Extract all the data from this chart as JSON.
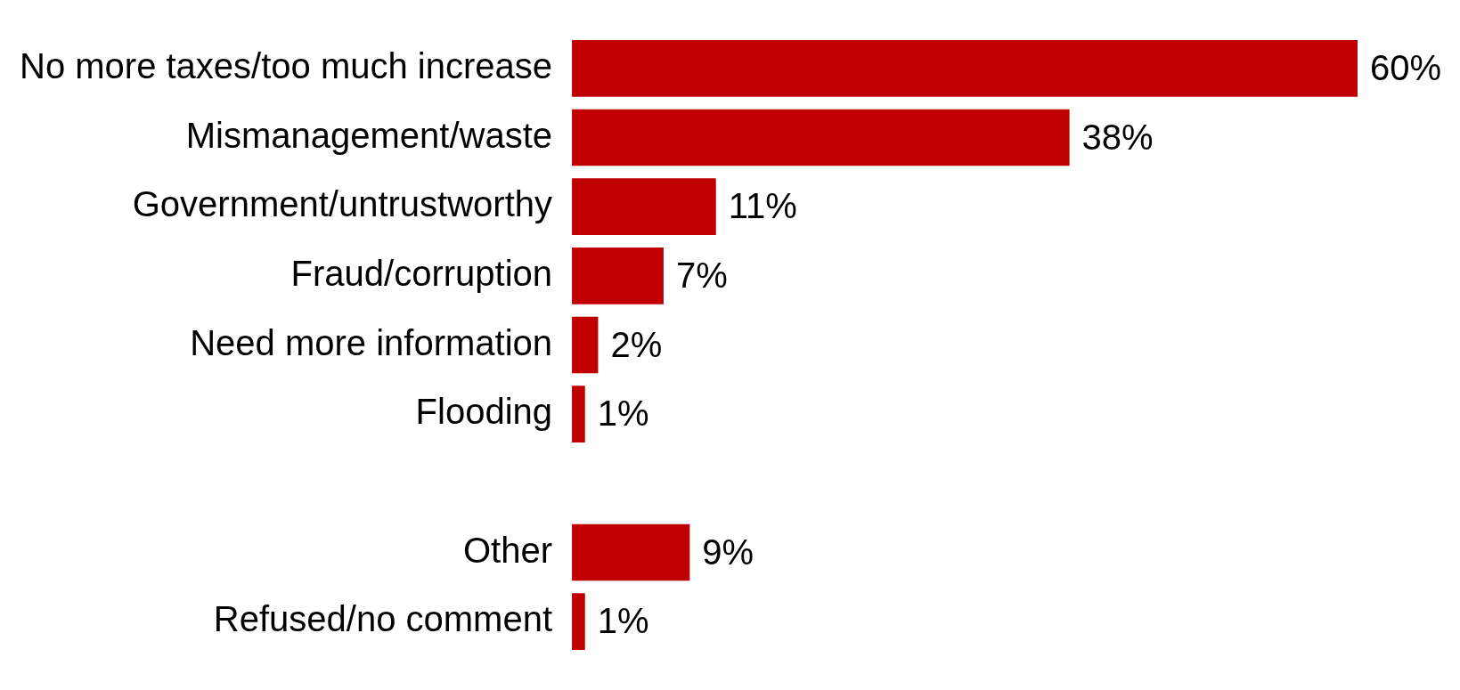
{
  "chart_data": {
    "type": "bar",
    "orientation": "horizontal",
    "categories": [
      "No more taxes/too much increase",
      "Mismanagement/waste",
      "Government/untrustworthy",
      "Fraud/corruption",
      "Need more information",
      "Flooding",
      null,
      "Other",
      "Refused/no comment"
    ],
    "values": [
      60,
      38,
      11,
      7,
      2,
      1,
      null,
      9,
      1
    ],
    "value_labels": [
      "60%",
      "38%",
      "11%",
      "7%",
      "2%",
      "1%",
      null,
      "9%",
      "1%"
    ],
    "color": "#c00000",
    "legend": false
  }
}
